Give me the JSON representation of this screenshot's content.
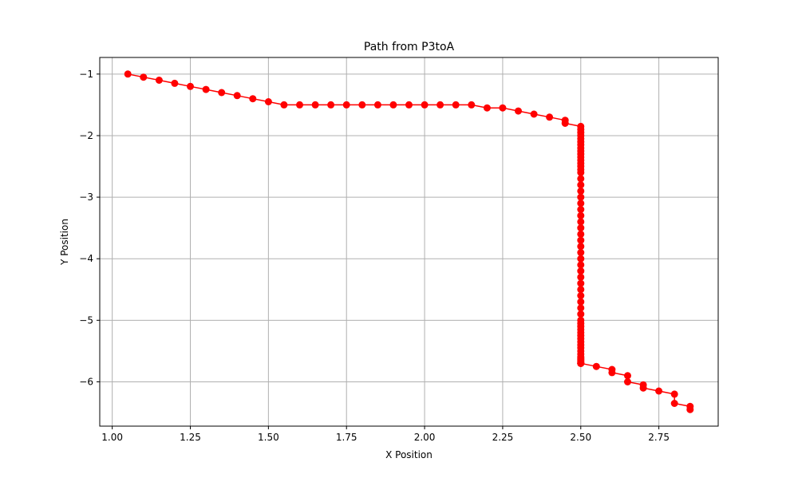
{
  "chart_data": {
    "type": "line",
    "title": "Path from P3toA",
    "xlabel": "X Position",
    "ylabel": "Y Position",
    "xlim": [
      0.96,
      2.94
    ],
    "ylim": [
      -6.72,
      -0.73
    ],
    "xticks": [
      1.0,
      1.25,
      1.5,
      1.75,
      2.0,
      2.25,
      2.5,
      2.75
    ],
    "xtick_labels": [
      "1.00",
      "1.25",
      "1.50",
      "1.75",
      "2.00",
      "2.25",
      "2.50",
      "2.75"
    ],
    "yticks": [
      -1,
      -2,
      -3,
      -4,
      -5,
      -6
    ],
    "ytick_labels": [
      "−1",
      "−2",
      "−3",
      "−4",
      "−5",
      "−6"
    ],
    "grid": true,
    "series": [
      {
        "color": "#ff0000",
        "marker": "circle",
        "x": [
          1.05,
          1.1,
          1.15,
          1.2,
          1.25,
          1.3,
          1.35,
          1.4,
          1.45,
          1.5,
          1.55,
          1.6,
          1.65,
          1.7,
          1.75,
          1.8,
          1.85,
          1.9,
          1.95,
          2.0,
          2.05,
          2.1,
          2.15,
          2.2,
          2.25,
          2.3,
          2.35,
          2.4,
          2.45,
          2.45,
          2.5,
          2.5,
          2.5,
          2.5,
          2.5,
          2.5,
          2.5,
          2.5,
          2.5,
          2.5,
          2.5,
          2.5,
          2.5,
          2.5,
          2.5,
          2.5,
          2.5,
          2.5,
          2.5,
          2.5,
          2.5,
          2.5,
          2.5,
          2.5,
          2.5,
          2.5,
          2.5,
          2.5,
          2.5,
          2.5,
          2.5,
          2.5,
          2.5,
          2.5,
          2.5,
          2.5,
          2.5,
          2.5,
          2.5,
          2.5,
          2.5,
          2.5,
          2.5,
          2.5,
          2.5,
          2.5,
          2.5,
          2.5,
          2.5,
          2.5,
          2.5,
          2.5,
          2.5,
          2.5,
          2.5,
          2.5,
          2.5,
          2.5,
          2.5,
          2.5,
          2.5,
          2.55,
          2.6,
          2.6,
          2.65,
          2.65,
          2.7,
          2.7,
          2.75,
          2.8,
          2.8,
          2.85,
          2.85
        ],
        "y": [
          -1.0,
          -1.05,
          -1.1,
          -1.15,
          -1.2,
          -1.25,
          -1.3,
          -1.35,
          -1.4,
          -1.45,
          -1.5,
          -1.5,
          -1.5,
          -1.5,
          -1.5,
          -1.5,
          -1.5,
          -1.5,
          -1.5,
          -1.5,
          -1.5,
          -1.5,
          -1.5,
          -1.55,
          -1.55,
          -1.6,
          -1.65,
          -1.7,
          -1.75,
          -1.8,
          -1.85,
          -1.9,
          -1.95,
          -2.0,
          -2.05,
          -2.1,
          -2.15,
          -2.2,
          -2.25,
          -2.3,
          -2.35,
          -2.4,
          -2.45,
          -2.5,
          -2.55,
          -2.6,
          -2.7,
          -2.8,
          -2.9,
          -3.0,
          -3.1,
          -3.2,
          -3.3,
          -3.4,
          -3.5,
          -3.6,
          -3.7,
          -3.8,
          -3.9,
          -4.0,
          -4.1,
          -4.2,
          -4.3,
          -4.4,
          -4.5,
          -4.6,
          -4.7,
          -4.8,
          -4.9,
          -5.0,
          -5.05,
          -5.1,
          -5.15,
          -5.2,
          -5.25,
          -5.3,
          -5.35,
          -5.4,
          -5.45,
          -5.5,
          -5.55,
          -5.6,
          -5.62,
          -5.64,
          -5.66,
          -5.68,
          -5.7,
          -5.7,
          -5.7,
          -5.7,
          -5.7,
          -5.75,
          -5.8,
          -5.85,
          -5.9,
          -6.0,
          -6.05,
          -6.1,
          -6.15,
          -6.2,
          -6.35,
          -6.4,
          -6.45
        ]
      }
    ]
  }
}
